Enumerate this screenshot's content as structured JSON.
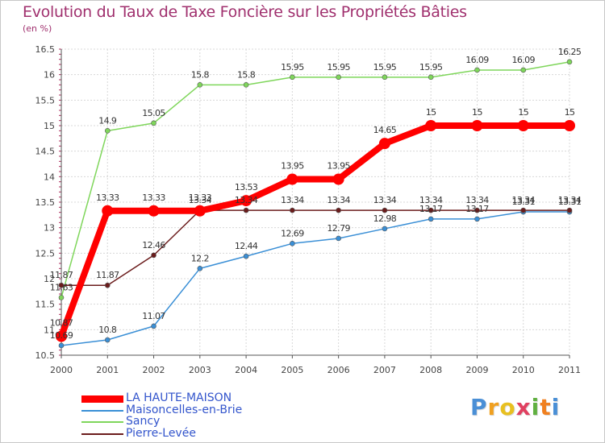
{
  "chart_data": {
    "type": "line",
    "title": "Evolution du Taux de Taxe Foncière sur les Propriétés Bâties",
    "subtitle": "(en %)",
    "x": [
      "2000",
      "2001",
      "2002",
      "2003",
      "2004",
      "2005",
      "2006",
      "2007",
      "2008",
      "2009",
      "2010",
      "2011"
    ],
    "ylim": [
      10.5,
      16.5
    ],
    "yticks": [
      "10.5",
      "11",
      "11.5",
      "12",
      "12.5",
      "13",
      "13.5",
      "14",
      "14.5",
      "15",
      "15.5",
      "16",
      "16.5"
    ],
    "grid": true,
    "series": [
      {
        "name": "LA HAUTE-MAISON",
        "color": "#ff0000",
        "emphasis": true,
        "values": [
          10.87,
          13.33,
          13.33,
          13.33,
          13.53,
          13.95,
          13.95,
          14.65,
          15,
          15,
          15,
          15
        ],
        "labels": [
          "10.87",
          "13.33",
          "13.33",
          "13.33",
          "13.53",
          "13.95",
          "13.95",
          "14.65",
          "15",
          "15",
          "15",
          "15"
        ]
      },
      {
        "name": "Maisoncelles-en-Brie",
        "color": "#3a8fd6",
        "values": [
          10.69,
          10.8,
          11.07,
          12.2,
          12.44,
          12.69,
          12.79,
          12.98,
          13.17,
          13.17,
          13.31,
          13.31
        ],
        "labels": [
          "10.69",
          "10.8",
          "11.07",
          "12.2",
          "12.44",
          "12.69",
          "12.79",
          "12.98",
          "13.17",
          "13.17",
          "13.31",
          "13.31"
        ]
      },
      {
        "name": "Sancy",
        "color": "#7fd65b",
        "values": [
          11.63,
          14.9,
          15.05,
          15.8,
          15.8,
          15.95,
          15.95,
          15.95,
          15.95,
          16.09,
          16.09,
          16.25
        ],
        "labels": [
          "11.63",
          "14.9",
          "15.05",
          "15.8",
          "15.8",
          "15.95",
          "15.95",
          "15.95",
          "15.95",
          "16.09",
          "16.09",
          "16.25"
        ]
      },
      {
        "name": "Pierre-Levée",
        "color": "#6b1c1c",
        "values": [
          11.87,
          11.87,
          12.46,
          13.34,
          13.34,
          13.34,
          13.34,
          13.34,
          13.34,
          13.34,
          13.34,
          13.34
        ],
        "labels": [
          "11.87",
          "11.87",
          "12.46",
          "13.34",
          "13.34",
          "13.34",
          "13.34",
          "13.34",
          "13.34",
          "13.34",
          "13.34",
          "13.34"
        ]
      }
    ]
  },
  "legend": {
    "items": [
      "LA HAUTE-MAISON",
      "Maisoncelles-en-Brie",
      "Sancy",
      "Pierre-Levée"
    ]
  },
  "logo": {
    "text": "Proxiti",
    "letters": [
      "P",
      "r",
      "o",
      "x",
      "i",
      "t",
      "i"
    ],
    "colors": [
      "#4a8fd6",
      "#f0a020",
      "#e8c020",
      "#e04060",
      "#60b040",
      "#f08020",
      "#4a8fd6"
    ]
  }
}
